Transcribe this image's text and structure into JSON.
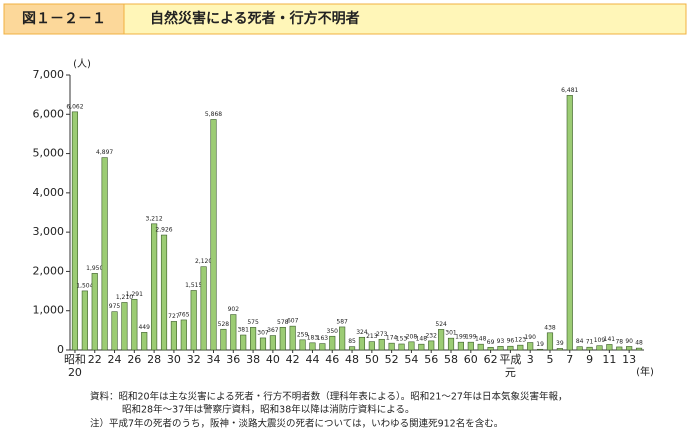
{
  "header": {
    "figure_number": "図１－２－１",
    "title": "自然災害による死者・行方不明者"
  },
  "chart_data": {
    "type": "bar",
    "y_unit": "(人)",
    "x_unit": "(年)",
    "categories": [
      "昭和\n20",
      null,
      "22",
      null,
      "24",
      null,
      "26",
      null,
      "28",
      null,
      "30",
      null,
      "32",
      null,
      "34",
      null,
      "36",
      null,
      "38",
      null,
      "40",
      null,
      "42",
      null,
      "44",
      null,
      "46",
      null,
      "48",
      null,
      "50",
      null,
      "52",
      null,
      "54",
      null,
      "56",
      null,
      "58",
      null,
      "60",
      null,
      "62",
      null,
      "平成\n元",
      null,
      "3",
      null,
      "5",
      null,
      "7",
      null,
      "9",
      null,
      "11",
      null,
      "13",
      null
    ],
    "values": [
      6062,
      1504,
      1950,
      4897,
      975,
      1210,
      1291,
      449,
      3212,
      2926,
      727,
      765,
      1515,
      2120,
      5868,
      528,
      902,
      381,
      575,
      307,
      367,
      578,
      607,
      259,
      183,
      163,
      350,
      587,
      85,
      324,
      213,
      273,
      174,
      153,
      208,
      148,
      232,
      524,
      301,
      199,
      199,
      148,
      69,
      93,
      96,
      123,
      190,
      19,
      438,
      39,
      6481,
      84,
      71,
      109,
      141,
      78,
      90,
      48
    ],
    "value_labels": [
      "6,062",
      "1,504",
      "1,950",
      "4,897",
      "975",
      "1,210",
      "1,291",
      "449",
      "3,212",
      "2,926",
      "727",
      "765",
      "1,515",
      "2,120",
      "5,868",
      "528",
      "902",
      "381",
      "575",
      "307",
      "367",
      "578",
      "607",
      "259",
      "183",
      "163",
      "350",
      "587",
      "85",
      "324",
      "213",
      "273",
      "174",
      "153",
      "208",
      "148",
      "232",
      "524",
      "301",
      "199",
      "199",
      "148",
      "69",
      "93",
      "96",
      "123",
      "190",
      "19",
      "438",
      "39",
      "6,481",
      "84",
      "71",
      "109",
      "141",
      "78",
      "90",
      "48"
    ],
    "color": "#9ccc74",
    "ylim": [
      0,
      7000
    ],
    "yticks": [
      0,
      {
        "value": 1000,
        "label": "1,000"
      },
      {
        "value": 2000,
        "label": "2,000"
      },
      {
        "value": 3000,
        "label": "3,000"
      },
      {
        "value": 4000,
        "label": "4,000"
      },
      {
        "value": 5000,
        "label": "5,000"
      },
      {
        "value": 6000,
        "label": "6,000"
      },
      {
        "value": 7000,
        "label": "7,000"
      }
    ],
    "grid": false
  },
  "notes": [
    "資料：昭和20年は主な災害による死者・行方不明者数（理科年表による）。昭和21～27年は日本気象災害年報，",
    "昭和28年～37年は警察庁資料，昭和38年以降は消防庁資料による。",
    "注）平成7年の死者のうち，阪神・淡路大震災の死者については，いわゆる関連死912名を含む。"
  ]
}
